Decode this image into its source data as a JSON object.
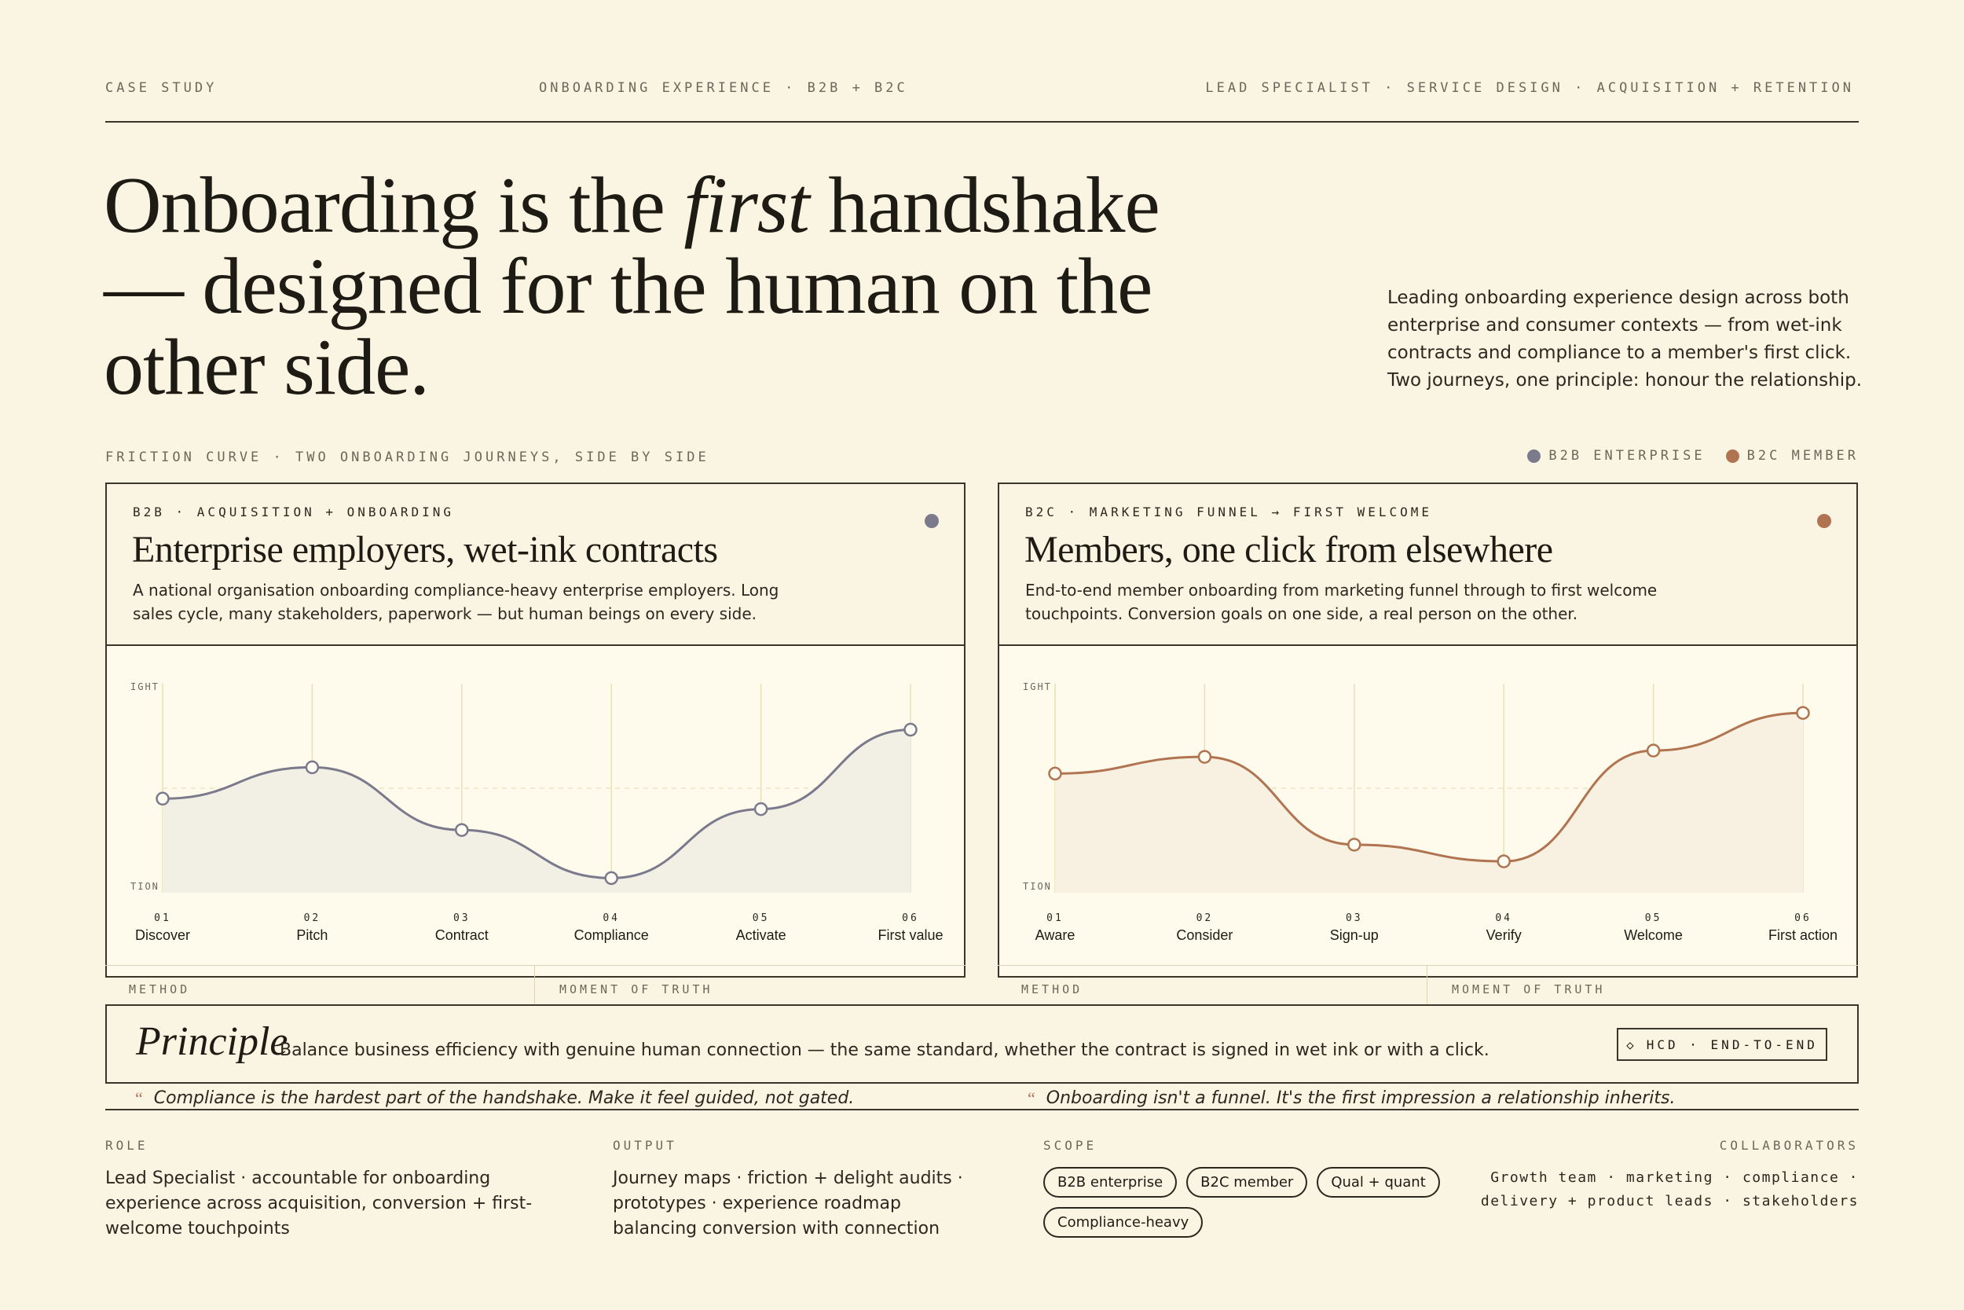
{
  "header": {
    "left": "CASE STUDY",
    "mid": "ONBOARDING EXPERIENCE · B2B + B2C",
    "right": "LEAD SPECIALIST · SERVICE DESIGN · ACQUISITION + RETENTION"
  },
  "hero": {
    "title_a": "Onboarding is the ",
    "title_em": "first",
    "title_b": " handshake — designed for the human on the other side.",
    "description": "Leading onboarding experience design across both enterprise and consumer contexts — from wet-ink contracts and compliance to a member's first click. Two journeys, one principle: honour the relationship."
  },
  "section": {
    "label": "FRICTION CURVE · TWO ONBOARDING JOURNEYS, SIDE BY SIDE",
    "legend": [
      {
        "label": "B2B ENTERPRISE",
        "color": "#7a7a8c"
      },
      {
        "label": "B2C MEMBER",
        "color": "#b07450"
      }
    ]
  },
  "cards": [
    {
      "eyebrow": "B2B · ACQUISITION + ONBOARDING",
      "title": "Enterprise employers, wet-ink contracts",
      "text": "A national organisation onboarding compliance-heavy enterprise employers. Long sales cycle, many stakeholders, paperwork — but human beings on every side.",
      "color": "#7a7a8c",
      "fill": "#f2f0e4",
      "axis_top": "IGHT",
      "axis_bottom": "TION",
      "method": "METHOD",
      "moment": "MOMENT OF TRUTH"
    },
    {
      "eyebrow": "B2C · MARKETING FUNNEL → FIRST WELCOME",
      "title": "Members, one click from elsewhere",
      "text": "End-to-end member onboarding from marketing funnel through to first welcome touchpoints. Conversion goals on one side, a real person on the other.",
      "color": "#b07450",
      "fill": "#f8f0e0",
      "axis_top": "IGHT",
      "axis_bottom": "TION",
      "method": "METHOD",
      "moment": "MOMENT OF TRUTH"
    }
  ],
  "chart_data": [
    {
      "type": "line",
      "series": [
        {
          "name": "B2B ENTERPRISE",
          "values": [
            0.45,
            0.6,
            0.3,
            0.07,
            0.4,
            0.78
          ]
        }
      ],
      "steps": [
        "01",
        "02",
        "03",
        "04",
        "05",
        "06"
      ],
      "categories": [
        "Discover",
        "Pitch",
        "Contract",
        "Compliance",
        "Activate",
        "First value"
      ],
      "ylim": [
        0,
        1
      ],
      "ylabel_top": "IGHT",
      "ylabel_bottom": "TION"
    },
    {
      "type": "line",
      "series": [
        {
          "name": "B2C MEMBER",
          "values": [
            0.57,
            0.65,
            0.23,
            0.15,
            0.68,
            0.86
          ]
        }
      ],
      "steps": [
        "01",
        "02",
        "03",
        "04",
        "05",
        "06"
      ],
      "categories": [
        "Aware",
        "Consider",
        "Sign-up",
        "Verify",
        "Welcome",
        "First action"
      ],
      "ylim": [
        0,
        1
      ],
      "ylabel_top": "IGHT",
      "ylabel_bottom": "TION"
    }
  ],
  "principle": {
    "word": "Principle",
    "text": "Balance business efficiency with genuine human connection — the same standard, whether the contract is signed in wet ink or with a click.",
    "badge_icon": "◇",
    "badge": "HCD · END-TO-END"
  },
  "quotes": {
    "mark": "“",
    "left": "Compliance is the hardest part of the handshake. Make it feel guided, not gated.",
    "right": "Onboarding isn't a funnel. It's the first impression a relationship inherits."
  },
  "footer": {
    "role_label": "ROLE",
    "role_text": "Lead Specialist · accountable for onboarding experience across acquisition, conversion + first-welcome touchpoints",
    "output_label": "OUTPUT",
    "output_text": "Journey maps · friction + delight audits · prototypes · experience roadmap balancing conversion with connection",
    "scope_label": "SCOPE",
    "scope_chips": [
      "B2B enterprise",
      "B2C member",
      "Qual + quant",
      "Compliance-heavy"
    ],
    "collab_label": "COLLABORATORS",
    "collab_text": "Growth team · marketing · compliance · delivery + product leads · stakeholders"
  }
}
